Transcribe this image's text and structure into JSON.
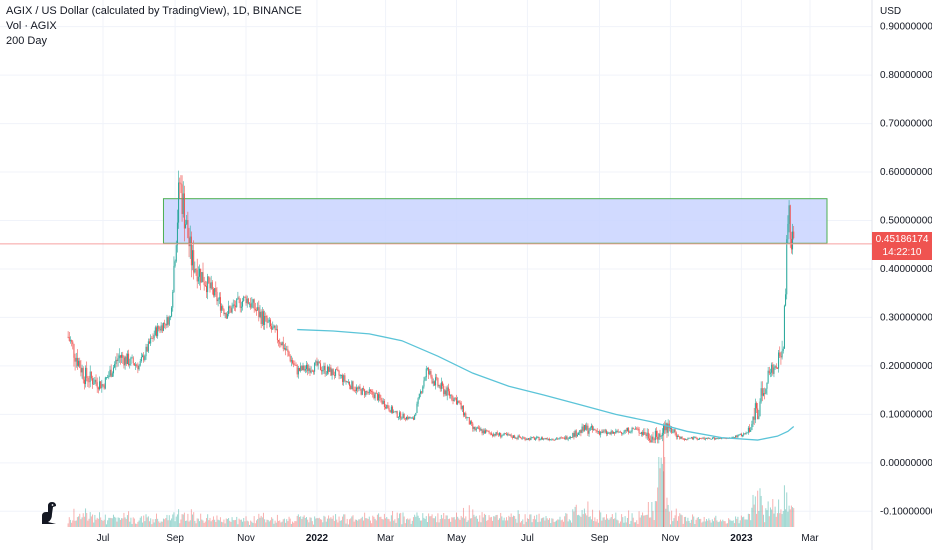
{
  "legend": {
    "title": "AGIX / US Dollar (calculated by TradingView), 1D, BINANCE",
    "vol": "Vol · AGIX",
    "ma": "200 Day"
  },
  "axis": {
    "unit": "USD"
  },
  "current": {
    "price": "0.45186174",
    "time": "14:22:10"
  },
  "colors": {
    "up": "#26a69a",
    "down": "#ef5350",
    "ma": "#5bc4d8",
    "zone_fill": "#c9d3ff",
    "zone_border": "#4caf50",
    "price_line": "#f7a1a1"
  },
  "chart_data": {
    "type": "candlestick",
    "title": "AGIX / US Dollar (calculated by TradingView), 1D, BINANCE",
    "y_ticks": [
      "0.90000000",
      "0.80000000",
      "0.70000000",
      "0.60000000",
      "0.50000000",
      "0.40000000",
      "0.30000000",
      "0.20000000",
      "0.10000000",
      "0.00000000",
      "-0.10000000"
    ],
    "y_tick_values": [
      0.9,
      0.8,
      0.7,
      0.6,
      0.5,
      0.4,
      0.3,
      0.2,
      0.1,
      0.0,
      -0.1
    ],
    "ylim": [
      -0.118,
      0.955
    ],
    "x_ticks": [
      "Jul",
      "Sep",
      "Nov",
      "2022",
      "Mar",
      "May",
      "Jul",
      "Sep",
      "Nov",
      "2023",
      "Mar"
    ],
    "x_bold": [
      "2022",
      "2023"
    ],
    "x_tick_dates": [
      "2021-07-01",
      "2021-09-01",
      "2021-11-01",
      "2022-01-01",
      "2022-03-01",
      "2022-05-01",
      "2022-07-01",
      "2022-09-01",
      "2022-11-01",
      "2023-01-01",
      "2023-03-01"
    ],
    "price_series": {
      "start": "2021-06-01",
      "end": "2023-02-15",
      "dates": [
        "2021-06-01",
        "2021-06-15",
        "2021-07-01",
        "2021-07-15",
        "2021-08-01",
        "2021-08-15",
        "2021-08-28",
        "2021-09-05",
        "2021-09-15",
        "2021-10-01",
        "2021-10-15",
        "2021-11-01",
        "2021-11-15",
        "2021-12-01",
        "2021-12-15",
        "2022-01-01",
        "2022-01-20",
        "2022-02-05",
        "2022-02-20",
        "2022-03-10",
        "2022-03-25",
        "2022-04-05",
        "2022-04-15",
        "2022-05-01",
        "2022-05-15",
        "2022-06-01",
        "2022-07-01",
        "2022-08-01",
        "2022-08-20",
        "2022-09-10",
        "2022-10-01",
        "2022-10-20",
        "2022-10-26",
        "2022-11-10",
        "2022-12-01",
        "2022-12-20",
        "2023-01-05",
        "2023-01-15",
        "2023-01-25",
        "2023-02-01",
        "2023-02-06",
        "2023-02-10",
        "2023-02-15"
      ],
      "close": [
        0.26,
        0.18,
        0.16,
        0.22,
        0.2,
        0.27,
        0.3,
        0.58,
        0.42,
        0.36,
        0.31,
        0.34,
        0.3,
        0.25,
        0.19,
        0.2,
        0.18,
        0.15,
        0.14,
        0.1,
        0.09,
        0.19,
        0.16,
        0.13,
        0.07,
        0.06,
        0.05,
        0.05,
        0.07,
        0.06,
        0.07,
        0.05,
        0.08,
        0.05,
        0.05,
        0.05,
        0.06,
        0.11,
        0.19,
        0.2,
        0.27,
        0.5,
        0.45
      ],
      "high": [
        0.34,
        0.22,
        0.2,
        0.26,
        0.22,
        0.29,
        0.31,
        0.67,
        0.48,
        0.4,
        0.35,
        0.36,
        0.34,
        0.28,
        0.21,
        0.22,
        0.2,
        0.17,
        0.16,
        0.12,
        0.1,
        0.2,
        0.19,
        0.15,
        0.09,
        0.07,
        0.06,
        0.06,
        0.095,
        0.07,
        0.075,
        0.13,
        0.13,
        0.06,
        0.055,
        0.055,
        0.07,
        0.26,
        0.23,
        0.21,
        0.42,
        0.67,
        0.52
      ],
      "low": [
        0.2,
        0.11,
        0.13,
        0.16,
        0.16,
        0.22,
        0.25,
        0.4,
        0.3,
        0.3,
        0.27,
        0.28,
        0.24,
        0.2,
        0.15,
        0.16,
        0.14,
        0.12,
        0.11,
        0.08,
        0.08,
        0.12,
        0.12,
        0.09,
        0.05,
        0.04,
        0.04,
        0.04,
        0.04,
        0.04,
        0.045,
        0.04,
        0.04,
        0.04,
        0.04,
        0.045,
        0.05,
        0.09,
        0.15,
        0.17,
        0.19,
        0.38,
        0.41
      ]
    },
    "ma200": {
      "name": "200 Day",
      "dates": [
        "2021-12-15",
        "2022-01-15",
        "2022-02-15",
        "2022-03-15",
        "2022-04-15",
        "2022-05-15",
        "2022-06-15",
        "2022-07-15",
        "2022-08-15",
        "2022-09-15",
        "2022-10-15",
        "2022-11-15",
        "2022-12-15",
        "2023-01-15",
        "2023-02-01",
        "2023-02-10",
        "2023-02-15"
      ],
      "values": [
        0.275,
        0.272,
        0.266,
        0.252,
        0.22,
        0.185,
        0.158,
        0.14,
        0.12,
        0.1,
        0.085,
        0.065,
        0.052,
        0.047,
        0.055,
        0.065,
        0.075
      ]
    },
    "zone": {
      "top": 0.545,
      "bottom": 0.453,
      "start": "2021-08-22",
      "end": "2023-03-05"
    },
    "current_price": 0.45186174
  }
}
